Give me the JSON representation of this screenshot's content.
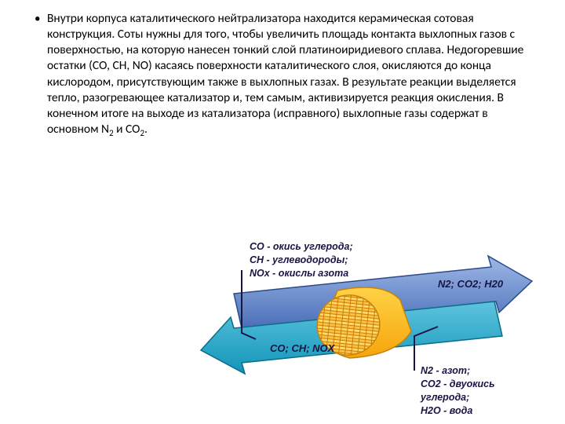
{
  "paragraph": {
    "bullet": "•",
    "text_html": "Внутри корпуса каталитического нейтрализатора находится керамическая сотовая конструкция. Соты нужны для того, чтобы увеличить площадь контакта выхлопных газов с поверхностью, на которую нанесен тонкий слой платиноиридиевого сплава. Недогоревшие остатки (СО, СН, NО) касаясь поверхности каталитического слоя, окисляются до конца кислородом, присутствующим также в выхлопных газах. В результате реакции выделяется тепло, разогревающее катализатор и, тем самым, активизируется реакция окисления. В конечном итоге на выходе из катализатора (исправного) выхлопные газы содержат в основном N<sub>2</sub> и CO<sub>2</sub>."
  },
  "diagram": {
    "arrow_in": {
      "fill_top": "#5ec3df",
      "fill_bottom": "#1295b9",
      "stroke": "#0a6d88"
    },
    "arrow_out": {
      "fill_top": "#9fb8e6",
      "fill_bottom": "#4a6fb8",
      "stroke": "#2b4a8c"
    },
    "catalyst": {
      "body_top": "#ffd246",
      "body_bottom": "#f6a50b",
      "face_top": "#ffe680",
      "face_bottom": "#f7b733",
      "stroke": "#c5810a",
      "hatch": "#cf7a00"
    },
    "legend_in": {
      "l1": "CO - окись углерода;",
      "l2": "CH - углеводороды;",
      "l3": "NOx - окислы азота"
    },
    "legend_out": {
      "l1": "N2 - азот;",
      "l2": "CO2 - двуокись углерода;",
      "l3": "H2O - вода"
    },
    "arrow_out_label": "N2; CO2; H20",
    "arrow_in_label": "CO; CH; NOX",
    "text_color": "#1a1445"
  }
}
